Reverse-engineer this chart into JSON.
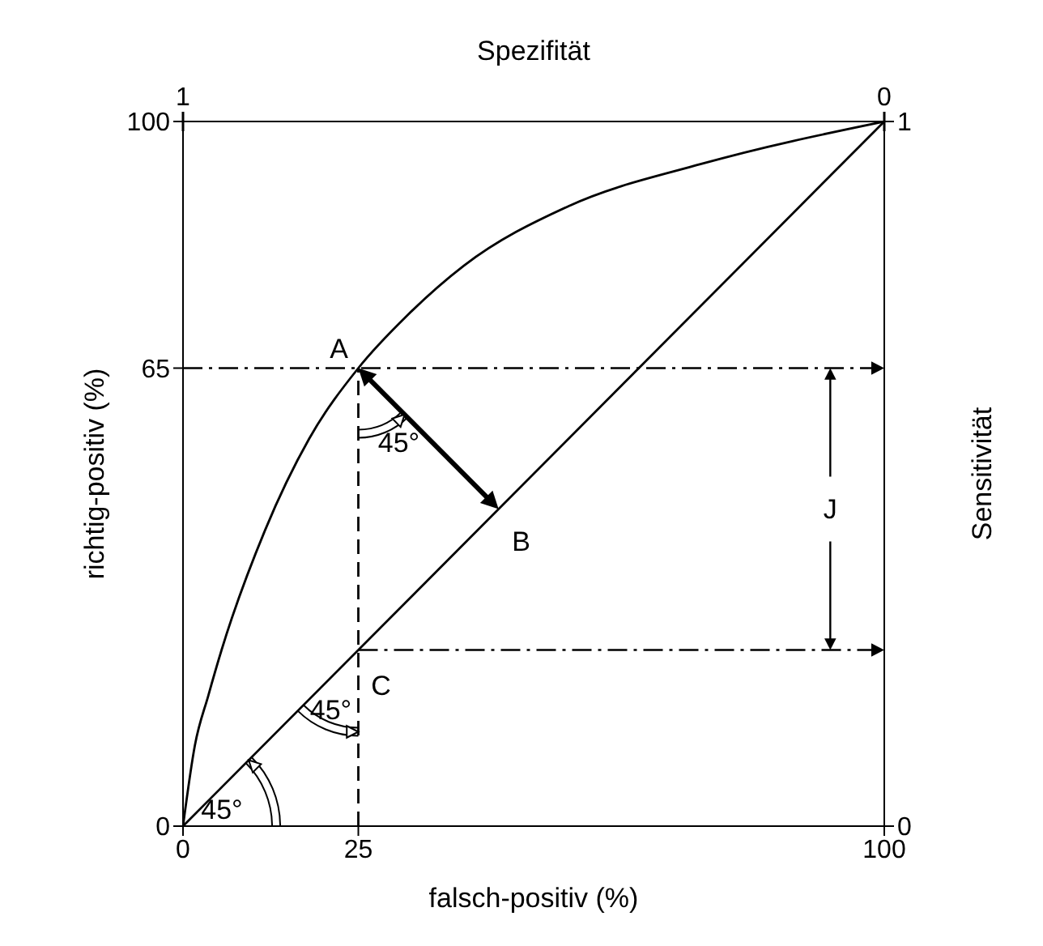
{
  "chart_data": {
    "type": "line",
    "xlabel": "falsch-positiv (%)",
    "ylabel": "richtig-positiv (%)",
    "x2label": "Spezifität",
    "y2label": "Sensitivität",
    "xlim": [
      0,
      100
    ],
    "xticks": [
      0,
      25,
      100
    ],
    "ylim": [
      0,
      100
    ],
    "yticks": [
      0,
      65,
      100
    ],
    "x2lim": [
      1,
      0
    ],
    "x2ticks": [
      1,
      0
    ],
    "y2lim": [
      0,
      1
    ],
    "y2ticks": [
      0,
      1
    ],
    "marker": "none",
    "series": [
      {
        "color": "#000000",
        "x": [
          0,
          1.7,
          3.6,
          5.5,
          11.7,
          18,
          25,
          32,
          40,
          55,
          74,
          100
        ],
        "values": [
          0,
          11.5,
          18.5,
          25,
          42,
          55,
          65,
          72.5,
          79.5,
          88,
          94,
          100
        ]
      },
      {
        "color": "#000000",
        "x": [
          0,
          100
        ],
        "values": [
          0,
          100
        ]
      },
      {
        "color": "#000000",
        "line_style": "dashed",
        "x": [
          25,
          25
        ],
        "values": [
          0,
          65
        ]
      }
    ],
    "annotations": [
      "A",
      "B",
      "C",
      "J",
      "45°",
      "45°",
      "45°"
    ]
  }
}
